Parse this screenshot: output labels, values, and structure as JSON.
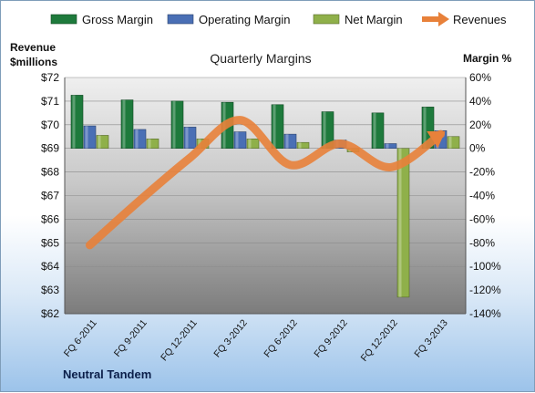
{
  "chart_data": {
    "type": "bar",
    "title": "Quarterly Margins",
    "categories": [
      "FQ 6-2011",
      "FQ 9-2011",
      "FQ 12-2011",
      "FQ 3-2012",
      "FQ 6-2012",
      "FQ 9-2012",
      "FQ 12-2012",
      "FQ 3-2013"
    ],
    "series": [
      {
        "name": "Gross Margin",
        "axis": "right",
        "kind": "bar",
        "color": "#1e7a3c",
        "values": [
          45,
          41,
          40,
          39,
          37,
          31,
          30,
          35
        ]
      },
      {
        "name": "Operating Margin",
        "axis": "right",
        "kind": "bar",
        "color": "#4a6fb5",
        "values": [
          19,
          16,
          18,
          14,
          12,
          7,
          4,
          15
        ]
      },
      {
        "name": "Net Margin",
        "axis": "right",
        "kind": "bar",
        "color": "#8fb04a",
        "values": [
          11,
          8,
          8,
          8,
          5,
          -3,
          -126,
          10
        ]
      },
      {
        "name": "Revenues",
        "axis": "left",
        "kind": "line",
        "color": "#e8813a",
        "values": [
          64.9,
          66.8,
          68.6,
          70.2,
          68.3,
          69.2,
          68.2,
          69.6
        ]
      }
    ],
    "y_left": {
      "label_line1": "Revenue",
      "label_line2": "$millions",
      "min": 62,
      "max": 72,
      "ticks": [
        "$62",
        "$63",
        "$64",
        "$65",
        "$66",
        "$67",
        "$68",
        "$69",
        "$70",
        "$71",
        "$72"
      ]
    },
    "y_right": {
      "label": "Margin %",
      "min": -140,
      "max": 60,
      "ticks": [
        "-140%",
        "-120%",
        "-100%",
        "-80%",
        "-60%",
        "-40%",
        "-20%",
        "0%",
        "20%",
        "40%",
        "60%"
      ]
    },
    "footer": "Neutral Tandem",
    "legend_position": "top",
    "grid": true
  }
}
